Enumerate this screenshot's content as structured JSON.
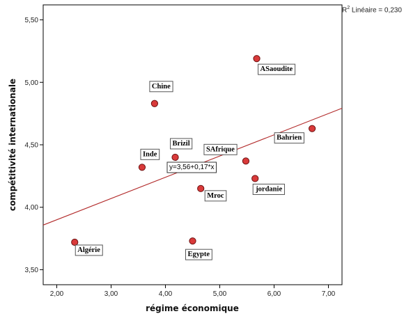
{
  "chart_data": {
    "type": "scatter",
    "xlabel": "régime économique",
    "ylabel": "compétitivité internationale",
    "xlim": [
      1.75,
      7.25
    ],
    "ylim": [
      3.38,
      5.62
    ],
    "x_ticks": [
      "2,00",
      "3,00",
      "4,00",
      "5,00",
      "6,00",
      "7,00"
    ],
    "y_ticks": [
      "3,50",
      "4,00",
      "4,50",
      "5,00",
      "5,50"
    ],
    "x_tick_values": [
      2,
      3,
      4,
      5,
      6,
      7
    ],
    "y_tick_values": [
      3.5,
      4,
      4.5,
      5,
      5.5
    ],
    "grid": false,
    "points": [
      {
        "label": "Algérie",
        "x": 2.33,
        "y": 3.72
      },
      {
        "label": "Inde",
        "x": 3.57,
        "y": 4.32
      },
      {
        "label": "Chine",
        "x": 3.8,
        "y": 4.83
      },
      {
        "label": "Brizil",
        "x": 4.18,
        "y": 4.4
      },
      {
        "label": "Egypte",
        "x": 4.5,
        "y": 3.73
      },
      {
        "label": "Mroc",
        "x": 4.65,
        "y": 4.15
      },
      {
        "label": "SAfrique",
        "x": 5.48,
        "y": 4.37
      },
      {
        "label": "jordanie",
        "x": 5.65,
        "y": 4.23
      },
      {
        "label": "ASaoudite",
        "x": 5.68,
        "y": 5.19
      },
      {
        "label": "Bahrien",
        "x": 6.7,
        "y": 4.63
      }
    ],
    "fit_line": {
      "intercept": 3.56,
      "slope": 0.17,
      "equation": "y=3,56+0,17*x"
    },
    "r2_prefix": "R",
    "r2_sup": "2",
    "r2_text": " Linéaire = 0,230",
    "colors": {
      "point_fill": "#d93a3a",
      "point_stroke": "#6b1010",
      "fit_line": "#b22a2a"
    }
  }
}
